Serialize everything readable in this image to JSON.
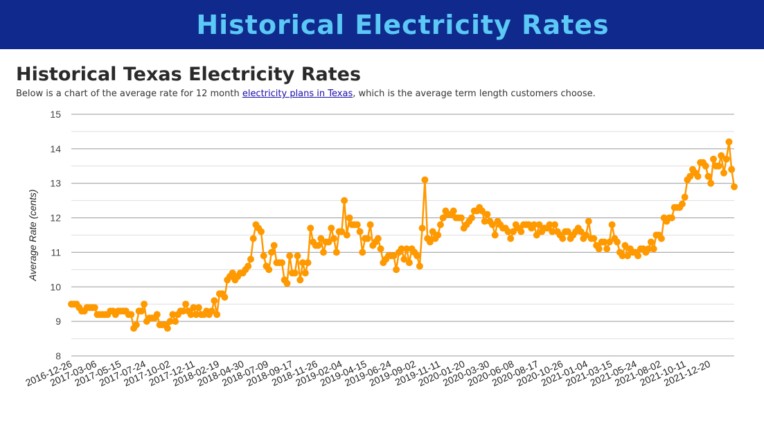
{
  "banner": {
    "title": "Historical Electricity Rates"
  },
  "article": {
    "heading": "Historical Texas Electricity Rates",
    "desc_before": "Below is a chart of the average rate for 12 month ",
    "desc_link": "electricity plans in Texas",
    "desc_after": ", which is the average term length customers choose."
  },
  "colors": {
    "banner_bg": "#0f2a8c",
    "banner_text": "#5bc8f5",
    "series": "#ff9900",
    "link": "#1a0dab"
  },
  "chart_data": {
    "type": "line",
    "title": "",
    "xlabel": "",
    "ylabel": "Average Rate (cents)",
    "ylim": [
      8,
      15
    ],
    "yticks": [
      8,
      9,
      10,
      11,
      12,
      13,
      14,
      15
    ],
    "gridlines": "major at every integer, minor at half",
    "x_tick_labels": [
      "2016-12-26",
      "2017-03-06",
      "2017-05-15",
      "2017-07-24",
      "2017-10-02",
      "2017-12-11",
      "2018-02-19",
      "2018-04-30",
      "2018-07-09",
      "2018-09-17",
      "2018-11-26",
      "2019-02-04",
      "2019-04-15",
      "2019-06-24",
      "2019-09-02",
      "2019-11-11",
      "2020-01-20",
      "2020-03-30",
      "2020-06-08",
      "2020-08-17",
      "2020-10-26",
      "2021-01-04",
      "2021-03-15",
      "2021-05-24",
      "2021-08-02",
      "2021-10-11",
      "2021-12-20"
    ],
    "series": [
      {
        "name": "Average Rate",
        "values": [
          9.5,
          9.5,
          9.5,
          9.4,
          9.3,
          9.3,
          9.4,
          9.4,
          9.4,
          9.4,
          9.2,
          9.2,
          9.2,
          9.2,
          9.2,
          9.3,
          9.3,
          9.2,
          9.3,
          9.3,
          9.3,
          9.3,
          9.2,
          9.2,
          8.8,
          8.9,
          9.3,
          9.3,
          9.5,
          9.0,
          9.1,
          9.1,
          9.1,
          9.2,
          8.9,
          8.9,
          8.9,
          8.8,
          9.0,
          9.2,
          9.0,
          9.2,
          9.3,
          9.3,
          9.5,
          9.3,
          9.2,
          9.4,
          9.2,
          9.4,
          9.2,
          9.2,
          9.3,
          9.2,
          9.3,
          9.6,
          9.2,
          9.8,
          9.8,
          9.7,
          10.2,
          10.3,
          10.4,
          10.2,
          10.3,
          10.4,
          10.4,
          10.5,
          10.6,
          10.8,
          11.4,
          11.8,
          11.7,
          11.6,
          10.9,
          10.6,
          10.5,
          11.0,
          11.2,
          10.7,
          10.7,
          10.7,
          10.2,
          10.1,
          10.9,
          10.4,
          10.4,
          10.9,
          10.2,
          10.7,
          10.4,
          10.7,
          11.7,
          11.3,
          11.2,
          11.2,
          11.4,
          11.0,
          11.3,
          11.3,
          11.7,
          11.4,
          11.0,
          11.6,
          11.6,
          12.5,
          11.5,
          12.0,
          11.8,
          11.8,
          11.8,
          11.6,
          11.0,
          11.4,
          11.4,
          11.8,
          11.2,
          11.3,
          11.4,
          11.1,
          10.7,
          10.8,
          10.9,
          10.9,
          10.9,
          10.5,
          11.0,
          11.1,
          10.8,
          11.1,
          10.7,
          11.1,
          11.0,
          10.9,
          10.6,
          11.7,
          13.1,
          11.4,
          11.3,
          11.6,
          11.4,
          11.5,
          11.8,
          12.0,
          12.2,
          12.1,
          12.1,
          12.2,
          12.0,
          12.0,
          12.0,
          11.7,
          11.8,
          11.9,
          12.0,
          12.2,
          12.2,
          12.3,
          12.2,
          11.9,
          12.1,
          11.9,
          11.8,
          11.5,
          11.9,
          11.8,
          11.7,
          11.7,
          11.6,
          11.4,
          11.6,
          11.8,
          11.7,
          11.6,
          11.8,
          11.8,
          11.8,
          11.7,
          11.8,
          11.5,
          11.8,
          11.6,
          11.7,
          11.7,
          11.8,
          11.6,
          11.8,
          11.6,
          11.5,
          11.4,
          11.6,
          11.6,
          11.4,
          11.5,
          11.6,
          11.7,
          11.6,
          11.4,
          11.5,
          11.9,
          11.4,
          11.4,
          11.2,
          11.1,
          11.3,
          11.3,
          11.1,
          11.3,
          11.8,
          11.4,
          11.3,
          11.0,
          10.9,
          11.2,
          10.9,
          11.1,
          11.0,
          11.0,
          10.9,
          11.1,
          11.1,
          11.0,
          11.1,
          11.3,
          11.1,
          11.5,
          11.5,
          11.4,
          12.0,
          11.9,
          12.0,
          12.0,
          12.3,
          12.3,
          12.3,
          12.4,
          12.6,
          13.1,
          13.2,
          13.4,
          13.3,
          13.2,
          13.6,
          13.6,
          13.5,
          13.2,
          13.0,
          13.7,
          13.5,
          13.5,
          13.8,
          13.3,
          13.7,
          14.2,
          13.4,
          12.9
        ]
      }
    ]
  }
}
